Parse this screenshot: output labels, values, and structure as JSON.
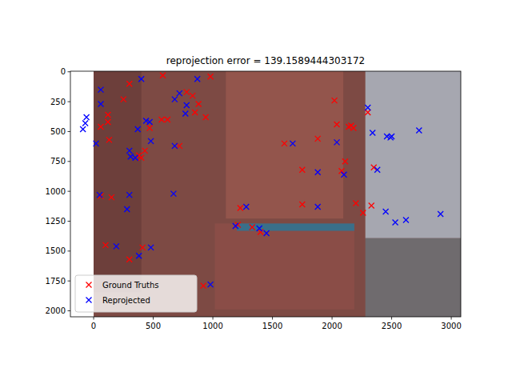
{
  "chart_data": {
    "type": "scatter",
    "title": "reprojection error = 139.1589444303172",
    "xlim": [
      -195,
      3080
    ],
    "ylim": [
      2050,
      -5
    ],
    "xticks": [
      0,
      500,
      1000,
      1500,
      2000,
      2500,
      3000
    ],
    "yticks": [
      0,
      250,
      500,
      750,
      1000,
      1250,
      1500,
      1750,
      2000
    ],
    "legend": "lower left",
    "grid": false,
    "series": [
      {
        "name": "Ground Truths",
        "color": "#ff0000",
        "marker": "x",
        "x": [
          300,
          580,
          980,
          250,
          120,
          120,
          60,
          130,
          470,
          570,
          620,
          430,
          380,
          400,
          720,
          780,
          830,
          880,
          850,
          940,
          1600,
          1750,
          1750,
          1880,
          2020,
          2040,
          2140,
          2160,
          2180,
          2110,
          2080,
          2300,
          2350,
          2200,
          2260,
          2330,
          150,
          100,
          410,
          300,
          920,
          1210,
          1230,
          1330,
          1400,
          60
        ],
        "values": [
          100,
          30,
          40,
          230,
          360,
          420,
          460,
          570,
          470,
          400,
          400,
          660,
          700,
          720,
          620,
          170,
          200,
          270,
          340,
          380,
          600,
          820,
          1110,
          560,
          240,
          440,
          460,
          450,
          470,
          750,
          830,
          340,
          800,
          1100,
          1180,
          1120,
          1050,
          1450,
          1470,
          1570,
          1790,
          1280,
          1140,
          1300,
          1340,
          1040
        ]
      },
      {
        "name": "Reprojected",
        "color": "#0000ff",
        "marker": "x",
        "x": [
          -60,
          -70,
          -90,
          60,
          60,
          20,
          400,
          300,
          310,
          350,
          370,
          440,
          470,
          480,
          720,
          680,
          780,
          770,
          870,
          680,
          1670,
          1880,
          1880,
          2040,
          2100,
          2300,
          2340,
          2380,
          2460,
          2490,
          2500,
          2530,
          2620,
          2450,
          2730,
          2910,
          1390,
          1450,
          1280,
          1190,
          980,
          480,
          380,
          190,
          300,
          280,
          50,
          670
        ],
        "values": [
          380,
          430,
          480,
          150,
          270,
          600,
          60,
          660,
          710,
          720,
          480,
          410,
          420,
          580,
          180,
          230,
          280,
          350,
          60,
          620,
          600,
          840,
          1130,
          590,
          860,
          300,
          510,
          820,
          540,
          550,
          540,
          1260,
          1240,
          1170,
          490,
          1190,
          1310,
          1350,
          1130,
          1290,
          1780,
          1470,
          1540,
          1460,
          1030,
          1150,
          1030,
          1020
        ]
      }
    ]
  }
}
